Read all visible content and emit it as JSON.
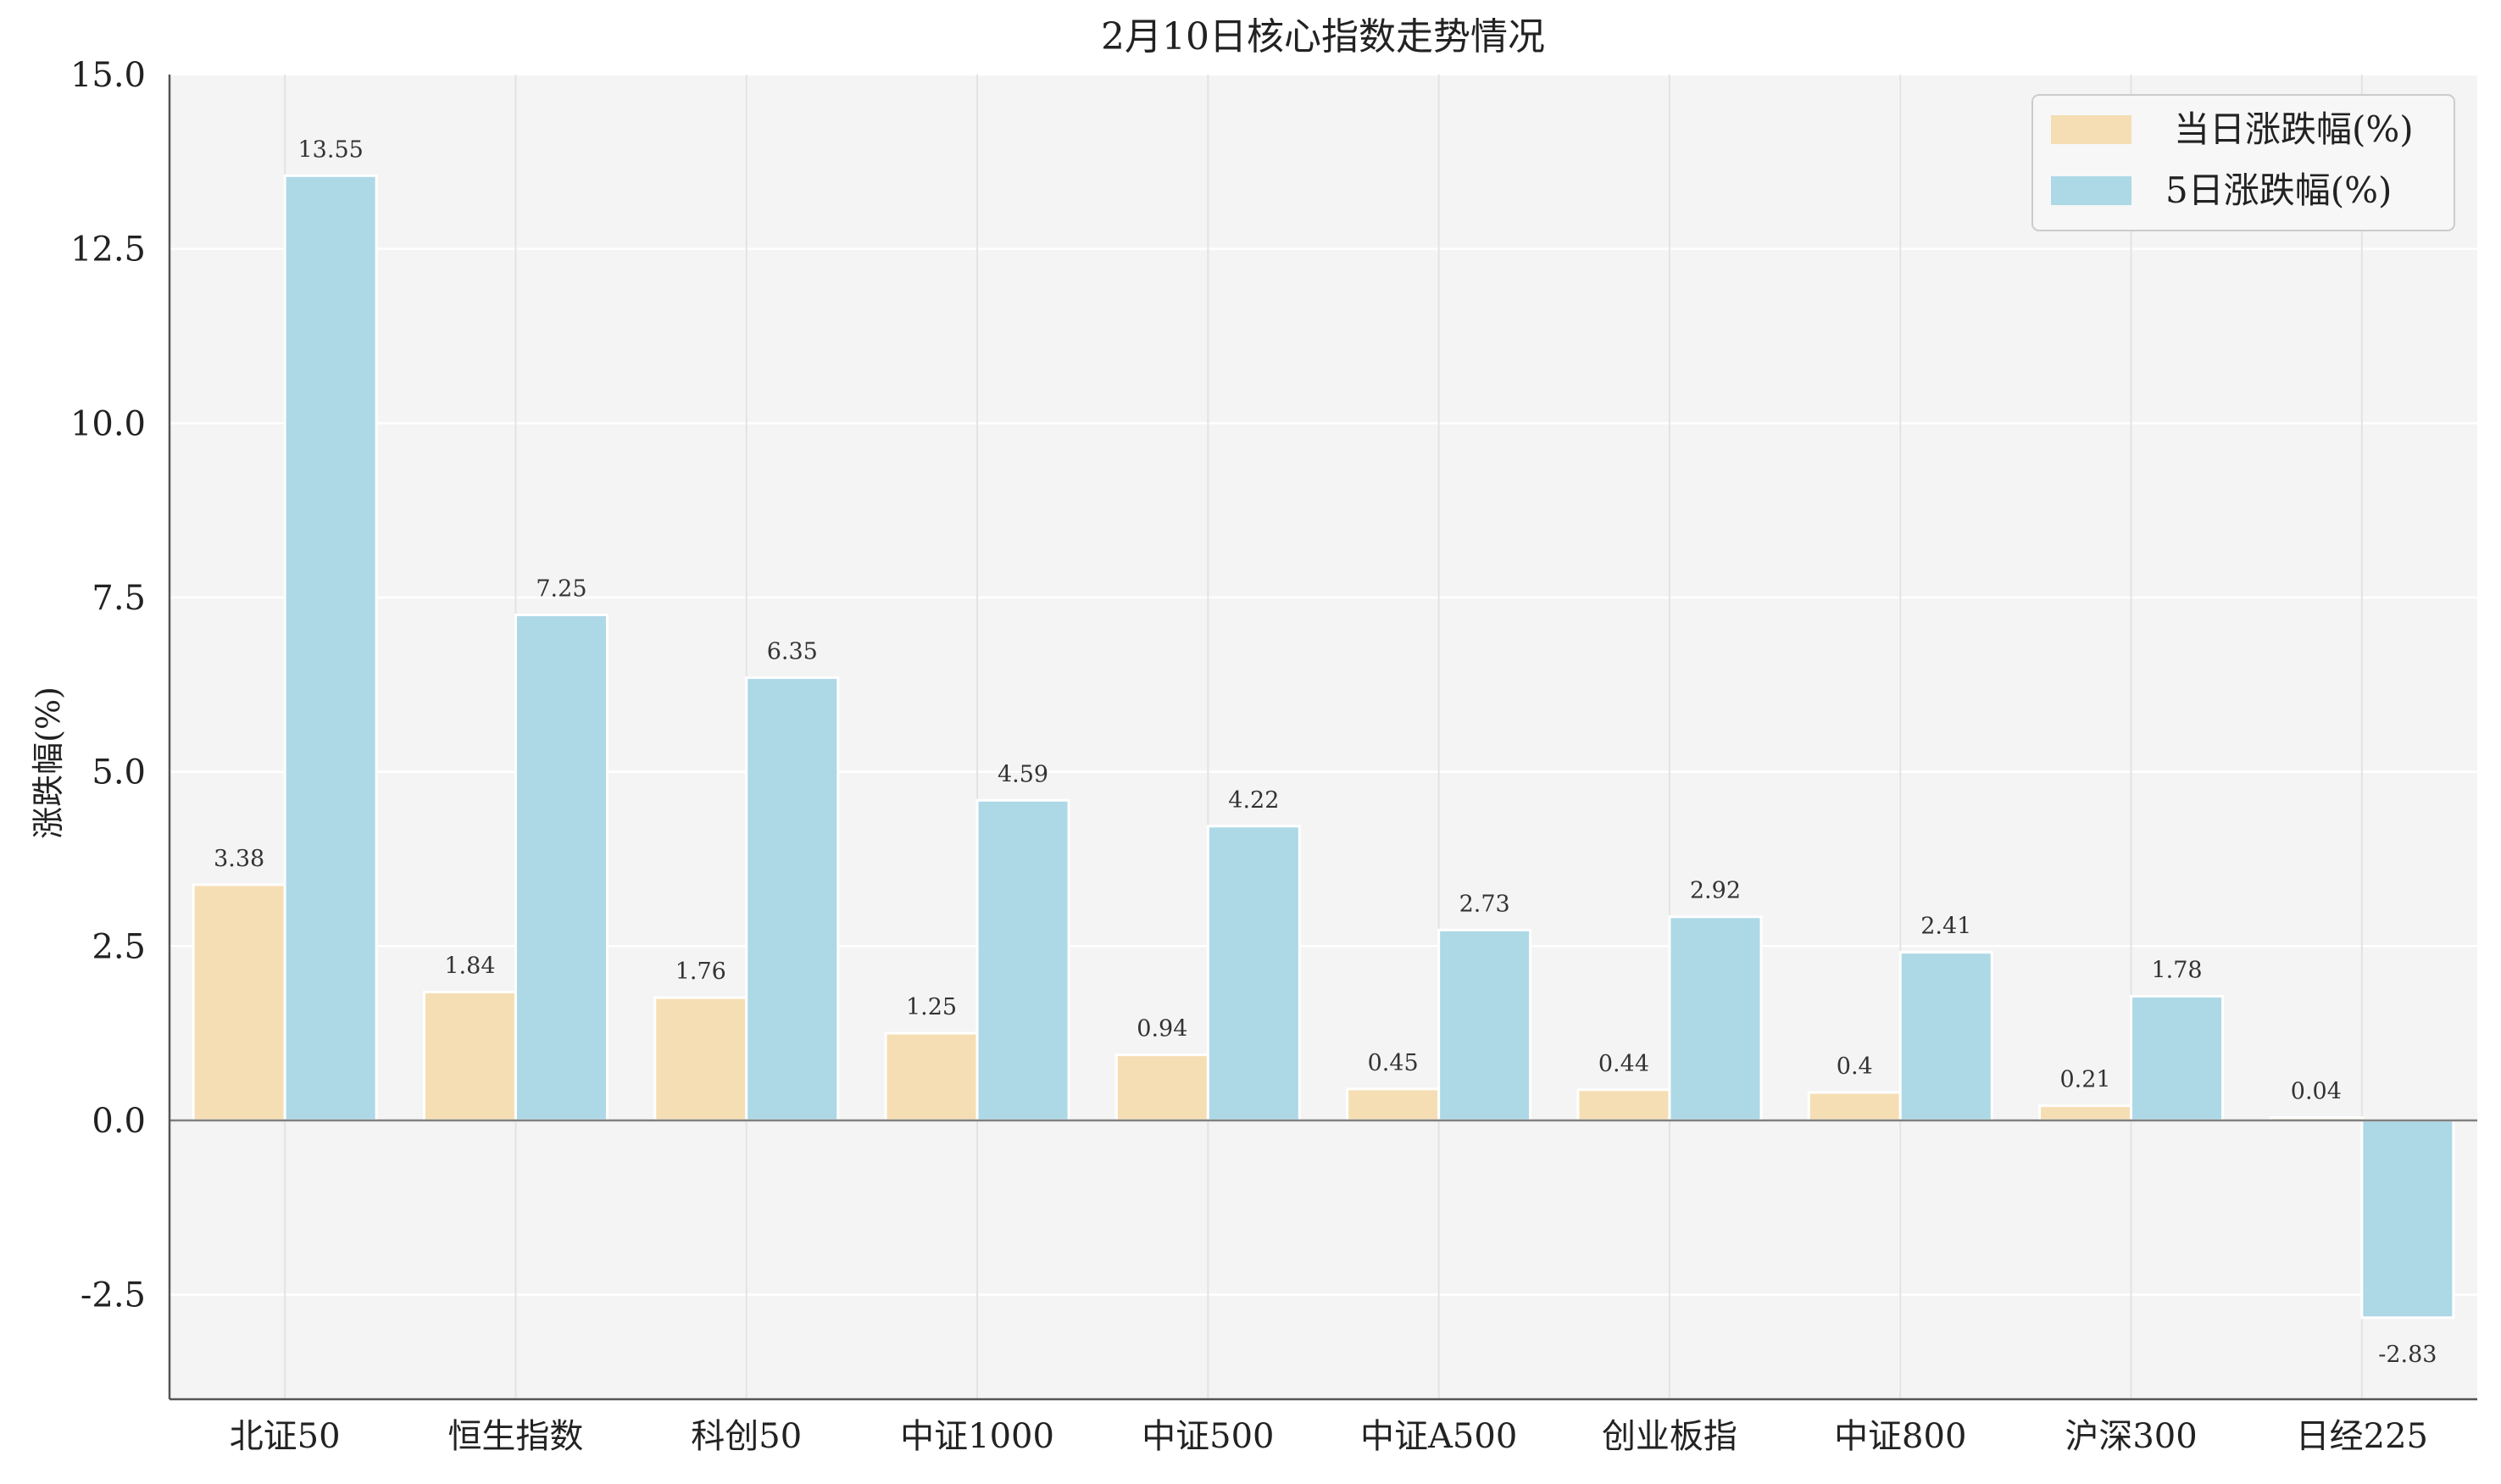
{
  "chart_data": {
    "type": "bar",
    "title": "2月10日核心指数走势情况",
    "ylabel": "涨跌幅(%)",
    "xlabel": "",
    "ylim": [
      -4.0,
      15.0
    ],
    "yticks": [
      -2.5,
      0.0,
      2.5,
      5.0,
      7.5,
      10.0,
      12.5,
      15.0
    ],
    "ytick_labels": [
      "-2.5",
      "0.0",
      "2.5",
      "5.0",
      "7.5",
      "10.0",
      "12.5",
      "15.0"
    ],
    "grid": true,
    "legend_position": "top-right",
    "categories": [
      "北证50",
      "恒生指数",
      "科创50",
      "中证1000",
      "中证500",
      "中证A500",
      "创业板指",
      "中证800",
      "沪深300",
      "日经225"
    ],
    "series": [
      {
        "name": "当日涨跌幅(%)",
        "color": "#f5deb3",
        "values": [
          3.38,
          1.84,
          1.76,
          1.25,
          0.94,
          0.45,
          0.44,
          0.4,
          0.21,
          0.04
        ],
        "labels": [
          "3.38",
          "1.84",
          "1.76",
          "1.25",
          "0.94",
          "0.45",
          "0.44",
          "0.4",
          "0.21",
          "0.04"
        ]
      },
      {
        "name": "5日涨跌幅(%)",
        "color": "#add8e6",
        "values": [
          13.55,
          7.25,
          6.35,
          4.59,
          4.22,
          2.73,
          2.92,
          2.41,
          1.78,
          -2.83
        ],
        "labels": [
          "13.55",
          "7.25",
          "6.35",
          "4.59",
          "4.22",
          "2.73",
          "2.92",
          "2.41",
          "1.78",
          "-2.83"
        ]
      }
    ]
  }
}
